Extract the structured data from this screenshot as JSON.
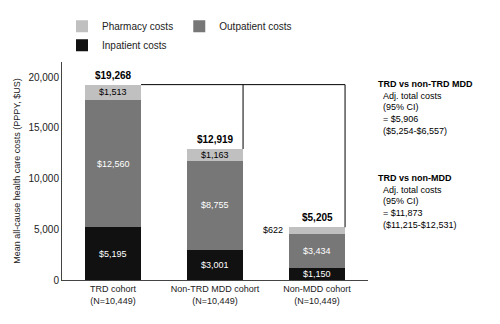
{
  "chart_data": {
    "type": "bar",
    "stacked": true,
    "data_labels": true,
    "grid": false,
    "legend": "top",
    "categories": [
      "TRD cohort\n(N=10,449)",
      "Non-TRD MDD cohort\n(N=10,449)",
      "Non-MDD cohort\n(N=10,449)"
    ],
    "series": [
      {
        "name": "Inpatient costs",
        "color": "#111111",
        "values": [
          5195,
          3001,
          1150
        ],
        "value_labels": [
          "$5,195",
          "$3,001",
          "$1,150"
        ]
      },
      {
        "name": "Outpatient costs",
        "color": "#777777",
        "values": [
          12560,
          8755,
          3434
        ],
        "value_labels": [
          "$12,560",
          "$8,755",
          "$3,434"
        ]
      },
      {
        "name": "Pharmacy costs",
        "color": "#c0c0c0",
        "values": [
          1513,
          1163,
          622
        ],
        "value_labels": [
          "$1,513",
          "$1,163",
          "$622"
        ]
      }
    ],
    "totals": [
      19268,
      12919,
      5205
    ],
    "total_labels": [
      "$19,268",
      "$12,919",
      "$5,205"
    ],
    "ylabel": "Mean all-cause health care costs (PPPY, $US)",
    "ylim": [
      0,
      21500
    ],
    "yticks": [
      0,
      {
        "value": 5000,
        "label": "5,000"
      },
      {
        "value": 10000,
        "label": "10,000"
      },
      {
        "value": 15000,
        "label": "15,000"
      },
      {
        "value": 20000,
        "label": "20,000"
      }
    ],
    "annotations": [
      [
        "TRD vs non-TRD MDD",
        "  Adj. total costs",
        "  (95% CI)",
        "  = $5,906",
        "  ($5,254-$6,557)"
      ],
      [
        "TRD vs non-MDD",
        "  Adj. total costs",
        "  (95% CI)",
        "  = $11,873",
        "  ($11,215-$12,531)"
      ]
    ]
  }
}
